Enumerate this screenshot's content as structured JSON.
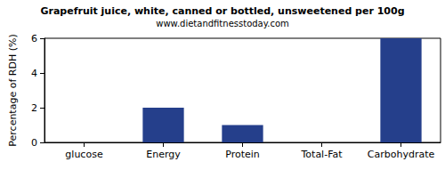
{
  "chart_data": {
    "type": "bar",
    "title": "Grapefruit juice, white, canned or bottled, unsweetened per 100g",
    "subtitle": "www.dietandfitnesstoday.com",
    "y_label": "Percentage of RDH (%)",
    "categories": [
      "glucose",
      "Energy",
      "Protein",
      "Total-Fat",
      "Carbohydrate"
    ],
    "values": [
      0,
      2,
      1,
      0,
      6
    ],
    "color": "#253f8b",
    "ylim": [
      0,
      6
    ],
    "yticks": [
      0,
      2,
      4,
      6
    ],
    "grid": false
  }
}
